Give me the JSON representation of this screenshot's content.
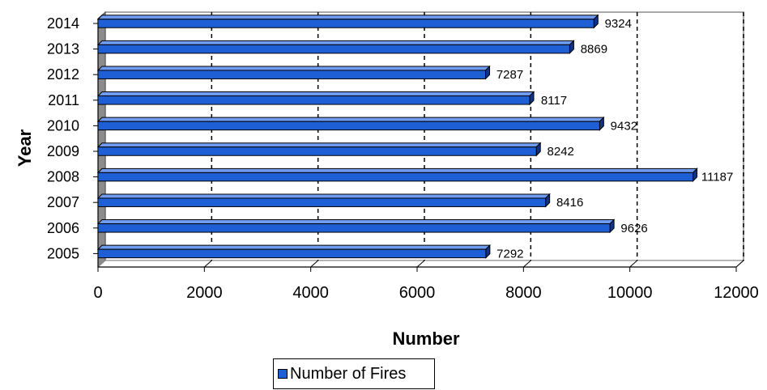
{
  "chart_data": {
    "type": "bar",
    "orientation": "horizontal",
    "categories": [
      "2014",
      "2013",
      "2012",
      "2011",
      "2010",
      "2009",
      "2008",
      "2007",
      "2006",
      "2005"
    ],
    "series": [
      {
        "name": "Number of Fires",
        "values": [
          9324,
          8869,
          7287,
          8117,
          9432,
          8242,
          11187,
          8416,
          9626,
          7292
        ]
      }
    ],
    "xlabel": "Number",
    "ylabel": "Year",
    "xlim": [
      0,
      12000
    ],
    "xticks": [
      "0",
      "2000",
      "4000",
      "6000",
      "8000",
      "10000",
      "12000"
    ],
    "grid": true,
    "legend_position": "bottom",
    "bar_color": "#1f5fd6"
  }
}
